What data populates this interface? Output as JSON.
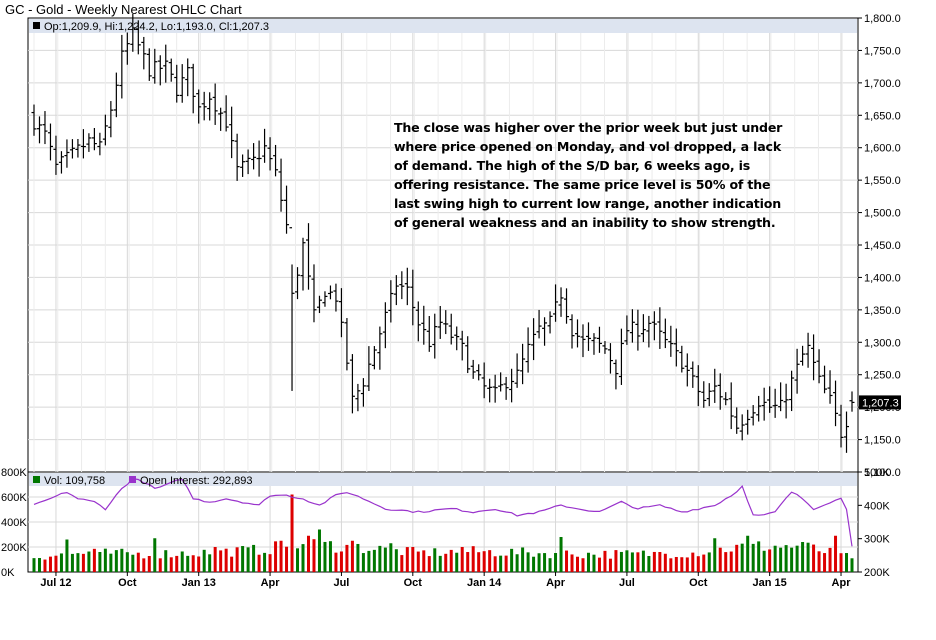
{
  "chart_title": "GC - Gold - Weekly Nearest OHLC Chart",
  "price_panel": {
    "ohlc_label": "Op:1,209.9, Hi:1,224.2, Lo:1,193.0, Cl:1,207.3",
    "last_price_tag": "1,207.3",
    "colors": {
      "bars": "#000000",
      "tag_bg": "#000000",
      "tag_text": "#ffffff",
      "legend_box": "#000000"
    }
  },
  "volume_panel": {
    "vol_label": "Vol: 109,758",
    "oi_label": "Open Interest: 292,893",
    "colors": {
      "up": "#007700",
      "down": "#dd0000",
      "open_interest": "#9933cc"
    }
  },
  "annotation_lines": [
    "The close was higher over the prior week but just under",
    "where price opened on Monday, and vol dropped, a lack",
    "of demand.  The high of the S/D bar, 6 weeks ago, is",
    "offering resistance.  The same price level is 50% of the",
    "last swing high to current low range, another indication",
    "of general weakness and an inability to show strength."
  ],
  "chart_data": {
    "type": "ohlc",
    "price_axis": {
      "ticks": [
        1800,
        1750,
        1700,
        1650,
        1600,
        1550,
        1500,
        1450,
        1400,
        1350,
        1300,
        1250,
        1200,
        1150,
        1100
      ],
      "tick_labels": [
        "1,800.0",
        "1,750.0",
        "1,700.0",
        "1,650.0",
        "1,600.0",
        "1,550.0",
        "1,500.0",
        "1,450.0",
        "1,400.0",
        "1,350.0",
        "1,300.0",
        "1,250.0",
        "1,200.0",
        "1,150.0",
        "1,100.0"
      ],
      "range": [
        1100,
        1800
      ]
    },
    "volume_axis_left": {
      "ticks": [
        0,
        200000,
        400000,
        600000,
        800000
      ],
      "tick_labels": [
        "0K",
        "200K",
        "400K",
        "600K",
        "800K"
      ],
      "range": [
        0,
        800000
      ]
    },
    "oi_axis_right": {
      "ticks": [
        200000,
        300000,
        400000,
        500000
      ],
      "tick_labels": [
        "200K",
        "300K",
        "400K",
        "500K"
      ],
      "range": [
        200000,
        500000
      ]
    },
    "x_labels": [
      "Jul 12",
      "Oct",
      "Jan 13",
      "Apr",
      "Jul",
      "Oct",
      "Jan 14",
      "Apr",
      "Jul",
      "Oct",
      "Jan 15",
      "Apr"
    ],
    "x_label_positions": [
      4,
      17,
      30,
      43,
      56,
      69,
      82,
      95,
      108,
      121,
      134,
      147
    ],
    "weeks": 150,
    "close_anchors": [
      [
        0,
        1640
      ],
      [
        2,
        1620
      ],
      [
        4,
        1570
      ],
      [
        7,
        1590
      ],
      [
        10,
        1610
      ],
      [
        12,
        1600
      ],
      [
        14,
        1660
      ],
      [
        16,
        1740
      ],
      [
        18,
        1775
      ],
      [
        21,
        1720
      ],
      [
        24,
        1725
      ],
      [
        26,
        1690
      ],
      [
        28,
        1715
      ],
      [
        30,
        1660
      ],
      [
        32,
        1680
      ],
      [
        35,
        1640
      ],
      [
        37,
        1565
      ],
      [
        40,
        1580
      ],
      [
        42,
        1600
      ],
      [
        44,
        1560
      ],
      [
        46,
        1480
      ],
      [
        47,
        1370
      ],
      [
        49,
        1450
      ],
      [
        51,
        1340
      ],
      [
        53,
        1380
      ],
      [
        55,
        1370
      ],
      [
        57,
        1270
      ],
      [
        58,
        1210
      ],
      [
        60,
        1240
      ],
      [
        62,
        1290
      ],
      [
        64,
        1340
      ],
      [
        66,
        1390
      ],
      [
        68,
        1380
      ],
      [
        70,
        1330
      ],
      [
        72,
        1300
      ],
      [
        74,
        1330
      ],
      [
        76,
        1310
      ],
      [
        78,
        1290
      ],
      [
        80,
        1250
      ],
      [
        82,
        1230
      ],
      [
        84,
        1220
      ],
      [
        86,
        1240
      ],
      [
        88,
        1250
      ],
      [
        90,
        1290
      ],
      [
        92,
        1320
      ],
      [
        94,
        1330
      ],
      [
        96,
        1375
      ],
      [
        98,
        1320
      ],
      [
        100,
        1300
      ],
      [
        102,
        1300
      ],
      [
        104,
        1290
      ],
      [
        106,
        1260
      ],
      [
        108,
        1320
      ],
      [
        110,
        1320
      ],
      [
        112,
        1330
      ],
      [
        114,
        1310
      ],
      [
        116,
        1290
      ],
      [
        118,
        1270
      ],
      [
        120,
        1240
      ],
      [
        122,
        1210
      ],
      [
        124,
        1230
      ],
      [
        126,
        1210
      ],
      [
        128,
        1170
      ],
      [
        130,
        1190
      ],
      [
        132,
        1210
      ],
      [
        134,
        1200
      ],
      [
        136,
        1200
      ],
      [
        138,
        1240
      ],
      [
        140,
        1280
      ],
      [
        141,
        1290
      ],
      [
        143,
        1240
      ],
      [
        145,
        1210
      ],
      [
        147,
        1160
      ],
      [
        148,
        1180
      ],
      [
        149,
        1207
      ]
    ],
    "volume_anchors": [
      [
        0,
        120000
      ],
      [
        10,
        150000
      ],
      [
        20,
        140000
      ],
      [
        30,
        150000
      ],
      [
        40,
        170000
      ],
      [
        50,
        220000
      ],
      [
        60,
        190000
      ],
      [
        70,
        150000
      ],
      [
        80,
        160000
      ],
      [
        90,
        150000
      ],
      [
        100,
        140000
      ],
      [
        110,
        140000
      ],
      [
        120,
        150000
      ],
      [
        130,
        200000
      ],
      [
        140,
        200000
      ],
      [
        149,
        110000
      ]
    ],
    "volume_spikes": [
      [
        6,
        260000
      ],
      [
        12,
        160000
      ],
      [
        22,
        270000
      ],
      [
        33,
        200000
      ],
      [
        45,
        250000
      ],
      [
        47,
        620000
      ],
      [
        50,
        290000
      ],
      [
        52,
        340000
      ],
      [
        58,
        250000
      ],
      [
        65,
        230000
      ],
      [
        78,
        200000
      ],
      [
        96,
        280000
      ],
      [
        114,
        160000
      ],
      [
        124,
        270000
      ],
      [
        130,
        290000
      ],
      [
        140,
        240000
      ],
      [
        146,
        290000
      ]
    ],
    "oi_anchors": [
      [
        0,
        400000
      ],
      [
        3,
        420000
      ],
      [
        6,
        440000
      ],
      [
        8,
        420000
      ],
      [
        11,
        410000
      ],
      [
        13,
        390000
      ],
      [
        16,
        450000
      ],
      [
        18,
        480000
      ],
      [
        20,
        470000
      ],
      [
        22,
        450000
      ],
      [
        24,
        460000
      ],
      [
        27,
        480000
      ],
      [
        29,
        420000
      ],
      [
        32,
        410000
      ],
      [
        35,
        420000
      ],
      [
        38,
        410000
      ],
      [
        41,
        400000
      ],
      [
        43,
        430000
      ],
      [
        46,
        430000
      ],
      [
        49,
        420000
      ],
      [
        52,
        400000
      ],
      [
        55,
        430000
      ],
      [
        57,
        440000
      ],
      [
        60,
        420000
      ],
      [
        64,
        390000
      ],
      [
        70,
        380000
      ],
      [
        76,
        390000
      ],
      [
        80,
        380000
      ],
      [
        84,
        390000
      ],
      [
        88,
        370000
      ],
      [
        92,
        380000
      ],
      [
        96,
        400000
      ],
      [
        99,
        390000
      ],
      [
        103,
        380000
      ],
      [
        107,
        410000
      ],
      [
        110,
        390000
      ],
      [
        114,
        400000
      ],
      [
        118,
        380000
      ],
      [
        121,
        390000
      ],
      [
        124,
        400000
      ],
      [
        126,
        420000
      ],
      [
        128,
        440000
      ],
      [
        129,
        460000
      ],
      [
        131,
        370000
      ],
      [
        133,
        370000
      ],
      [
        135,
        380000
      ],
      [
        138,
        440000
      ],
      [
        140,
        420000
      ],
      [
        142,
        390000
      ],
      [
        145,
        410000
      ],
      [
        147,
        420000
      ],
      [
        148,
        390000
      ],
      [
        149,
        280000
      ]
    ]
  }
}
